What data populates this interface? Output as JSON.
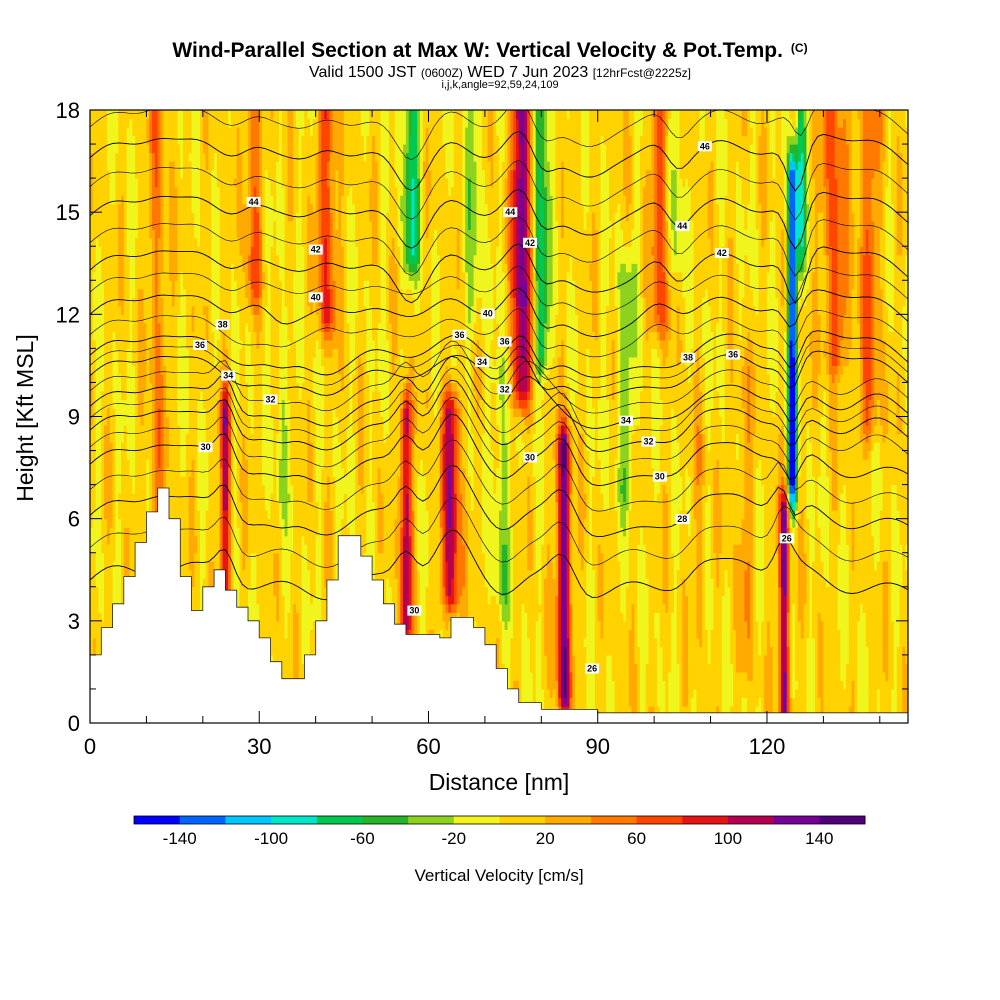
{
  "header": {
    "title": "Wind-Parallel Section at Max W: Vertical Velocity & Pot.Temp.",
    "title_tag": "(C)",
    "valid_prefix": "Valid 1500 JST",
    "valid_utc": "(0600Z)",
    "valid_date": "WED 7 Jun 2023",
    "forecast": "[12hrFcst@2225z]",
    "indices": "i,j,k,angle=92,59,24,109"
  },
  "chart_data": {
    "type": "heatmap",
    "title": "Wind-Parallel Section at Max W: Vertical Velocity & Pot.Temp.",
    "xlabel": "Distance [nm]",
    "ylabel": "Height [Kft MSL]",
    "xlim": [
      0,
      145
    ],
    "ylim": [
      0,
      18
    ],
    "x_ticks": [
      0,
      30,
      60,
      90,
      120
    ],
    "y_ticks": [
      0,
      3,
      6,
      9,
      12,
      15,
      18
    ],
    "x_minor_step": 10,
    "colorbar": {
      "label": "Vertical Velocity [cm/s]",
      "levels": [
        -160,
        -140,
        -120,
        -100,
        -80,
        -60,
        -40,
        -20,
        0,
        20,
        40,
        60,
        80,
        100,
        120,
        140,
        160
      ],
      "tick_labels": [
        -140,
        -100,
        -60,
        -20,
        20,
        60,
        100,
        140
      ],
      "colors": [
        "#0000ff",
        "#0064ff",
        "#00c8ff",
        "#00e6c8",
        "#00c850",
        "#28b428",
        "#8cd21e",
        "#f0f51e",
        "#ffd200",
        "#ffaa00",
        "#ff7800",
        "#ff4600",
        "#e61414",
        "#b40050",
        "#780096",
        "#500078"
      ]
    },
    "terrain": {
      "x": [
        0,
        2,
        4,
        6,
        8,
        10,
        12,
        14,
        16,
        18,
        20,
        22,
        24,
        26,
        28,
        30,
        32,
        34,
        36,
        38,
        40,
        42,
        44,
        46,
        48,
        50,
        52,
        54,
        56,
        58,
        60,
        62,
        64,
        66,
        68,
        70,
        72,
        74,
        76,
        78,
        80,
        90,
        100,
        110,
        120,
        130,
        140,
        145
      ],
      "height_kft": [
        2.0,
        2.8,
        3.5,
        4.3,
        5.3,
        6.2,
        6.9,
        6.0,
        4.3,
        3.3,
        4.0,
        4.5,
        3.9,
        3.4,
        3.0,
        2.5,
        1.8,
        1.3,
        1.3,
        2.0,
        3.0,
        4.2,
        5.5,
        5.5,
        4.9,
        4.2,
        3.5,
        2.9,
        2.6,
        2.6,
        2.6,
        2.5,
        3.1,
        3.1,
        2.8,
        2.3,
        1.6,
        1.0,
        0.6,
        0.6,
        0.4,
        0.3,
        0.3,
        0.3,
        0.3,
        0.3,
        0.3,
        0.3
      ]
    },
    "updrafts": [
      {
        "x": 12,
        "y0": 6,
        "y1": 18,
        "width": 1.5,
        "peak": 40
      },
      {
        "x": 24,
        "y0": 3,
        "y1": 9,
        "width": 0.9,
        "peak": 100
      },
      {
        "x": 29,
        "y0": 13,
        "y1": 18,
        "width": 1.5,
        "peak": 50
      },
      {
        "x": 42,
        "y0": 12,
        "y1": 18,
        "width": 1.6,
        "peak": 70
      },
      {
        "x": 56,
        "y0": 3,
        "y1": 9,
        "width": 1.0,
        "peak": 110
      },
      {
        "x": 64,
        "y0": 4,
        "y1": 9,
        "width": 1.5,
        "peak": 110
      },
      {
        "x": 76.5,
        "y0": 10,
        "y1": 18,
        "width": 1.6,
        "peak": 130
      },
      {
        "x": 84,
        "y0": 1,
        "y1": 8,
        "width": 1.2,
        "peak": 130
      },
      {
        "x": 101,
        "y0": 12,
        "y1": 18,
        "width": 1.5,
        "peak": 60
      },
      {
        "x": 123,
        "y0": 0.5,
        "y1": 6,
        "width": 0.9,
        "peak": 125
      },
      {
        "x": 132,
        "y0": 11,
        "y1": 18,
        "width": 2.2,
        "peak": 60
      },
      {
        "x": 138,
        "y0": 9,
        "y1": 18,
        "width": 2.0,
        "peak": 50
      },
      {
        "x": 116,
        "y0": 2,
        "y1": 10,
        "width": 1.5,
        "peak": 25
      },
      {
        "x": 108,
        "y0": 3,
        "y1": 8,
        "width": 1.2,
        "peak": 20
      }
    ],
    "downdrafts": [
      {
        "x": 57,
        "y0": 14,
        "y1": 18,
        "width": 1.4,
        "peak": -80
      },
      {
        "x": 80,
        "y0": 11,
        "y1": 18,
        "width": 1.2,
        "peak": -80
      },
      {
        "x": 124.5,
        "y0": 7,
        "y1": 16,
        "width": 0.8,
        "peak": -150
      },
      {
        "x": 126,
        "y0": 14,
        "y1": 18,
        "width": 0.8,
        "peak": -80
      },
      {
        "x": 34,
        "y0": 7,
        "y1": 11,
        "width": 1.2,
        "peak": -30
      },
      {
        "x": 73,
        "y0": 4,
        "y1": 10,
        "width": 1.5,
        "peak": -35
      },
      {
        "x": 95,
        "y0": 7,
        "y1": 13,
        "width": 2.0,
        "peak": -30
      },
      {
        "x": 104,
        "y0": 14,
        "y1": 18,
        "width": 1.0,
        "peak": -35
      },
      {
        "x": 68,
        "y0": 12,
        "y1": 18,
        "width": 1.5,
        "peak": -30
      }
    ],
    "isentropes": [
      {
        "value": 26,
        "y0": 4.2,
        "label": "26",
        "label_x": 123.5
      },
      {
        "value": 28,
        "y0": 6.1,
        "label": "28",
        "label_x": 105
      },
      {
        "value": 30,
        "y0": 7.6,
        "label": "30",
        "label_x": 101
      },
      {
        "value": 32,
        "y0": 8.6,
        "label": "32",
        "label_x": 99
      },
      {
        "value": 34,
        "y0": 9.3,
        "label": "34",
        "label_x": 95
      },
      {
        "value": 36,
        "y0": 10.2,
        "label": "36",
        "label_x": 114
      },
      {
        "value": 38,
        "y0": 10.8,
        "label": "38",
        "label_x": 106
      },
      {
        "value": 40,
        "y0": 12.0,
        "label": "40",
        "label_x": 70.5
      },
      {
        "value": 42,
        "y0": 13.3,
        "label": "42",
        "label_x": 112
      },
      {
        "value": 44,
        "y0": 14.9,
        "label": "44",
        "label_x": 105
      },
      {
        "value": 46,
        "y0": 16.6,
        "label": "46",
        "label_x": 109
      }
    ],
    "contour_labels": [
      {
        "text": "44",
        "x": 29,
        "y": 15.3
      },
      {
        "text": "42",
        "x": 40,
        "y": 13.9
      },
      {
        "text": "40",
        "x": 40,
        "y": 12.5
      },
      {
        "text": "38",
        "x": 23.5,
        "y": 11.7
      },
      {
        "text": "36",
        "x": 19.5,
        "y": 11.1
      },
      {
        "text": "34",
        "x": 24.5,
        "y": 10.2
      },
      {
        "text": "32",
        "x": 32,
        "y": 9.5
      },
      {
        "text": "30",
        "x": 20.5,
        "y": 8.1
      },
      {
        "text": "36",
        "x": 65.5,
        "y": 11.4
      },
      {
        "text": "36",
        "x": 73.5,
        "y": 11.2
      },
      {
        "text": "34",
        "x": 69.5,
        "y": 10.6
      },
      {
        "text": "32",
        "x": 73.5,
        "y": 9.8
      },
      {
        "text": "44",
        "x": 74.5,
        "y": 15.0
      },
      {
        "text": "42",
        "x": 78,
        "y": 14.1
      },
      {
        "text": "30",
        "x": 78,
        "y": 7.8
      },
      {
        "text": "30",
        "x": 57.5,
        "y": 3.3
      },
      {
        "text": "26",
        "x": 89,
        "y": 1.6
      }
    ]
  }
}
